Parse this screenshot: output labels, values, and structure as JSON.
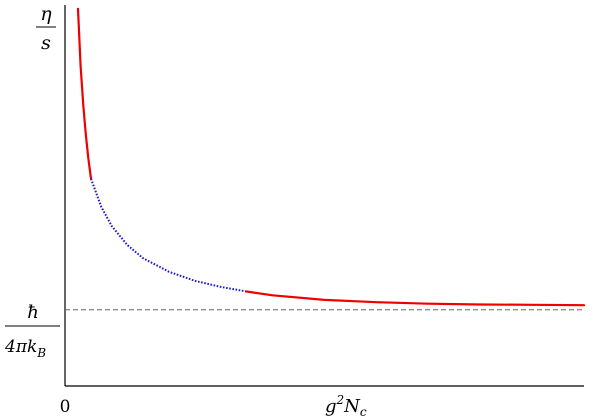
{
  "chart_data": {
    "type": "line",
    "title": "",
    "xlabel": {
      "base": "g",
      "sup": "2",
      "main": "N",
      "sub": "c"
    },
    "ylabel": {
      "numerator": "η",
      "denominator": "s"
    },
    "x_tick_labels": [
      "0"
    ],
    "reference_line": {
      "label_numerator": "ħ",
      "label_denominator_main": "4πk",
      "label_denominator_sub": "B",
      "y": 1.0,
      "style": "dashed",
      "color": "#666666"
    },
    "xlim": [
      0,
      1
    ],
    "ylim": [
      0,
      5.0
    ],
    "series": [
      {
        "style": "solid",
        "color": "#ee0000",
        "x": [
          0.025,
          0.03,
          0.035,
          0.04,
          0.045,
          0.05
        ],
        "y": [
          4.95,
          4.2,
          3.7,
          3.3,
          2.98,
          2.72
        ]
      },
      {
        "style": "dotted",
        "color": "#1a1acc",
        "x": [
          0.05,
          0.07,
          0.09,
          0.12,
          0.15,
          0.2,
          0.25,
          0.3,
          0.35
        ],
        "y": [
          2.72,
          2.35,
          2.1,
          1.85,
          1.68,
          1.5,
          1.38,
          1.3,
          1.24
        ]
      },
      {
        "style": "solid",
        "color": "#ee0000",
        "x": [
          0.35,
          0.4,
          0.5,
          0.6,
          0.7,
          0.8,
          0.9,
          1.0
        ],
        "y": [
          1.24,
          1.19,
          1.13,
          1.1,
          1.08,
          1.07,
          1.065,
          1.06
        ]
      }
    ]
  }
}
